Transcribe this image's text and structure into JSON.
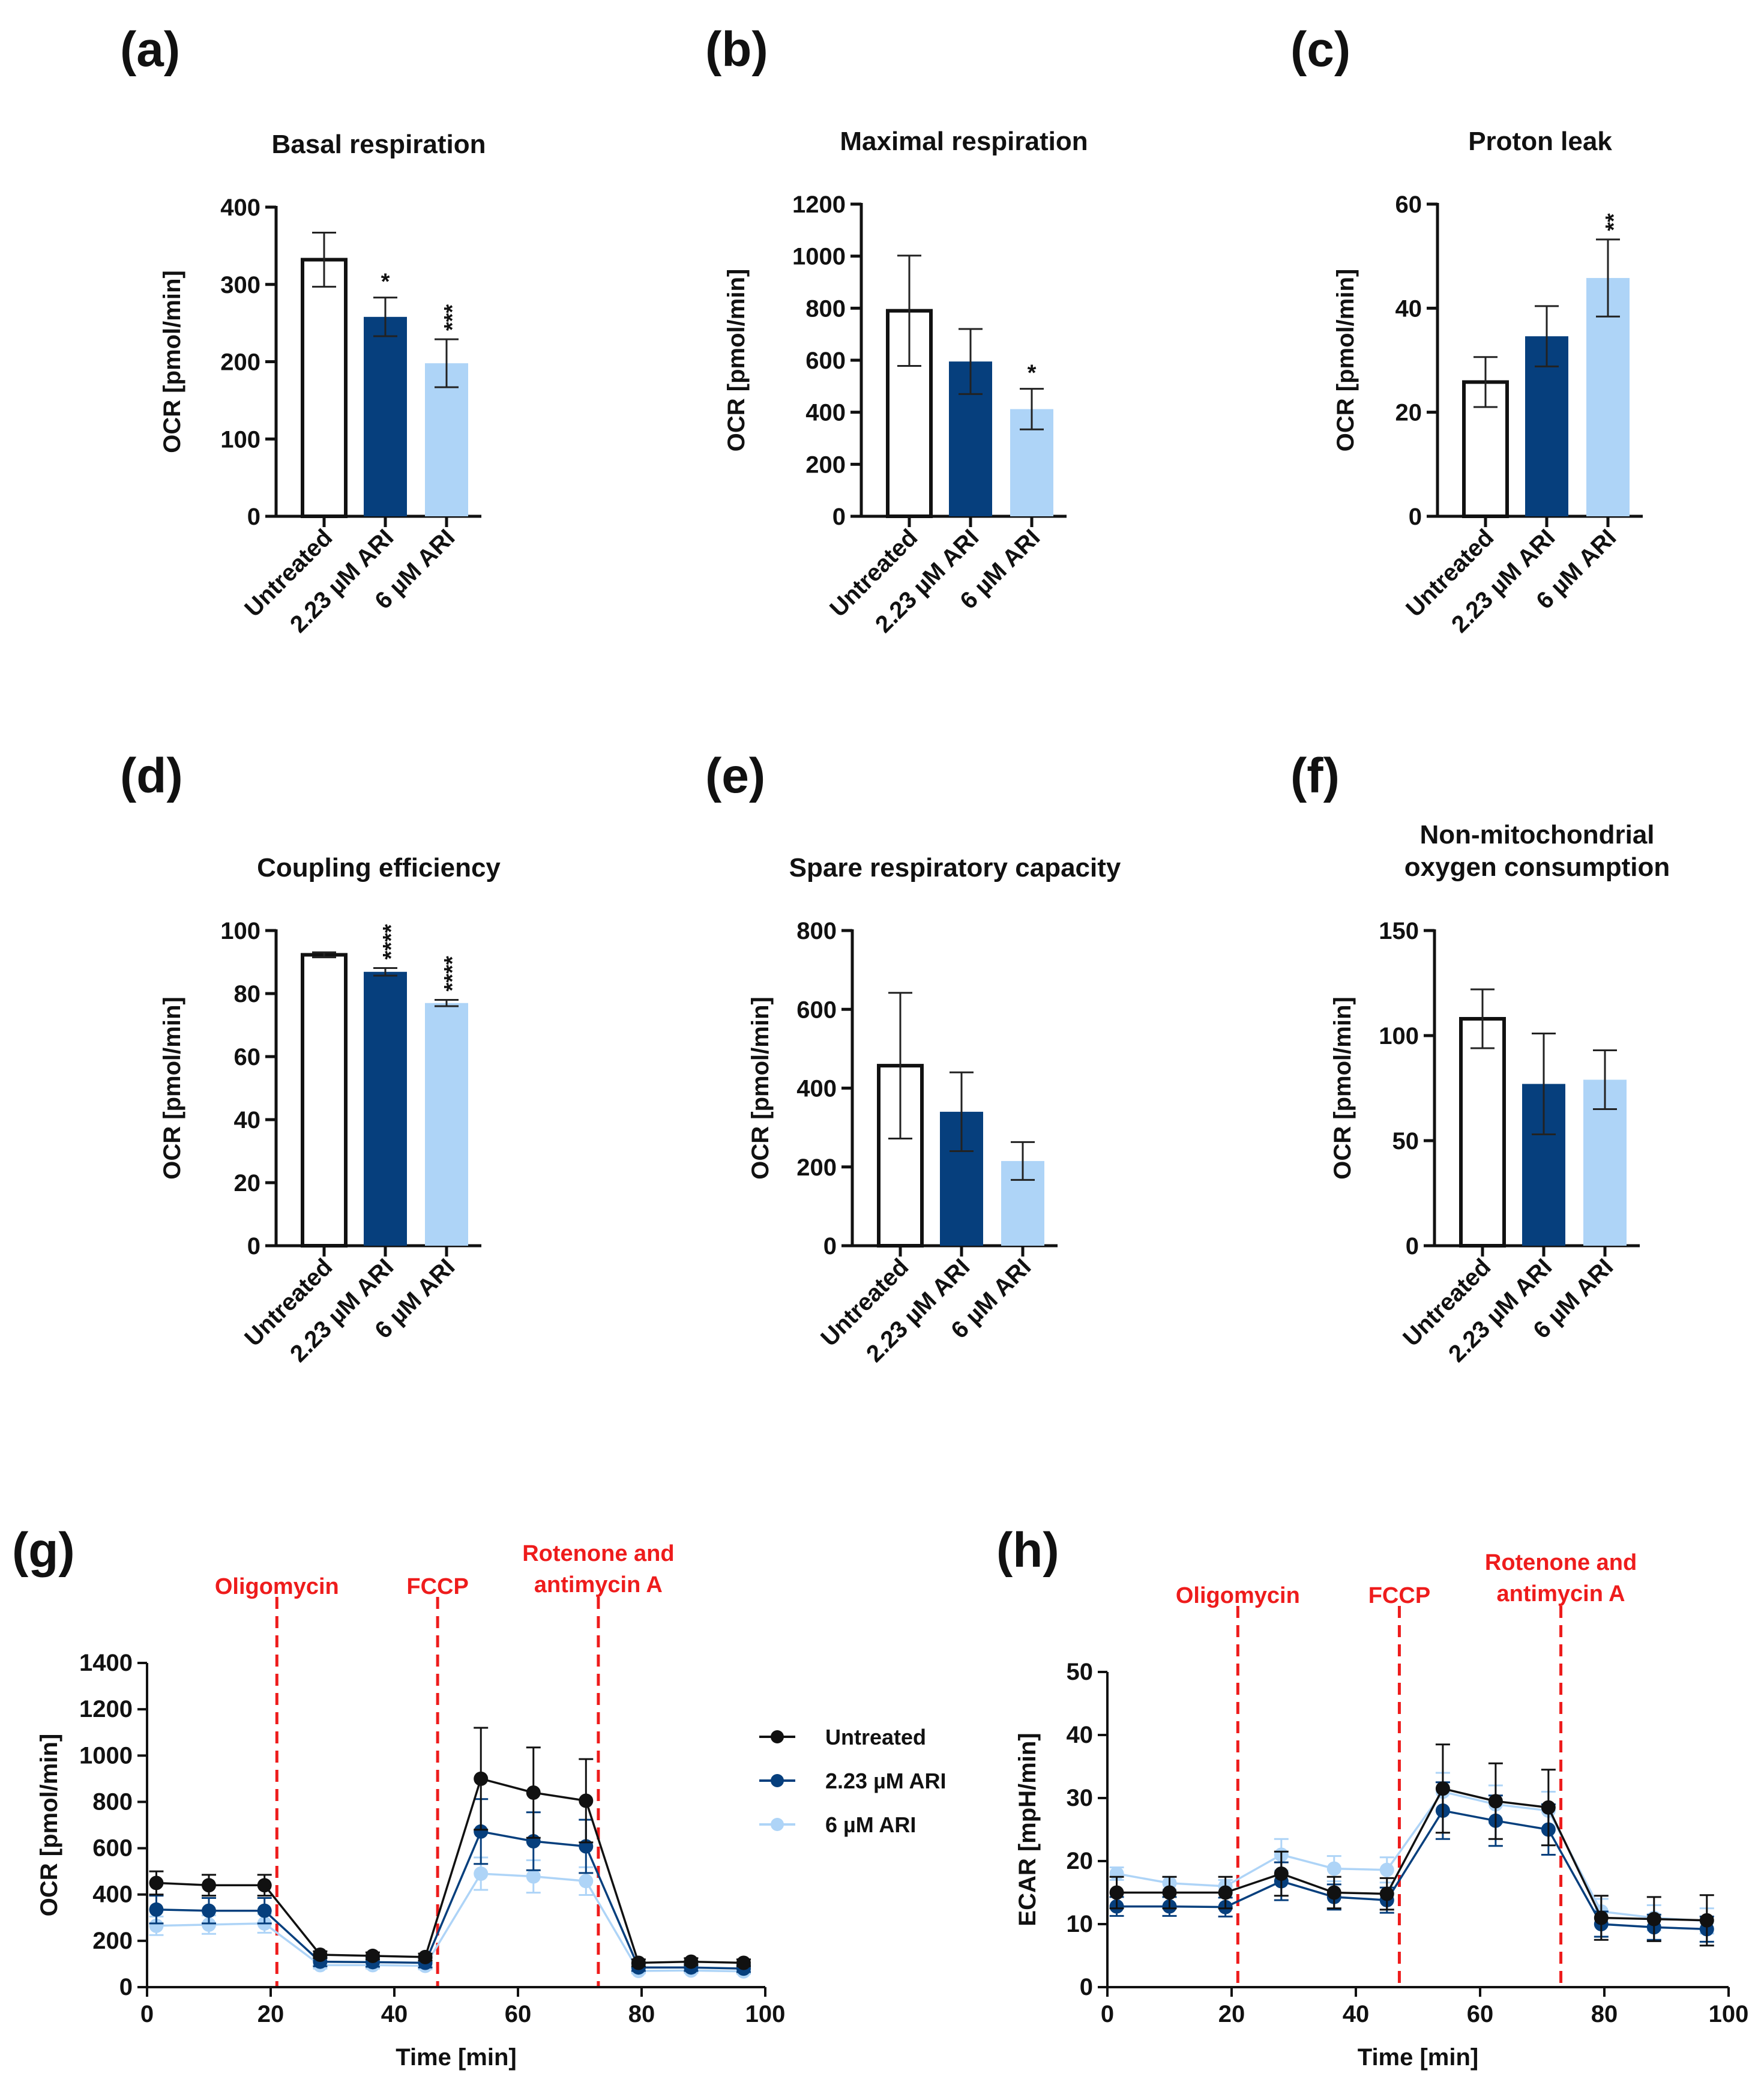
{
  "figure": {
    "series_colors": {
      "Untreated": "#111111",
      "2.23 µM ARI": "#063f7d",
      "6 µM ARI": "#aed4f7",
      "treatment_line": "#ee1c1c"
    },
    "legend": [
      "Untreated",
      "2.23 µM ARI",
      "6 µM ARI"
    ]
  },
  "chart_data": [
    {
      "id": "a",
      "letter": "(a)",
      "type": "bar",
      "title": [
        "Basal respiration"
      ],
      "ylabel": "OCR [pmol/min]",
      "ylim": [
        0,
        400
      ],
      "yticks": [
        0,
        100,
        200,
        300,
        400
      ],
      "categories": [
        "Untreated",
        "2.23 µM ARI",
        "6 µM ARI"
      ],
      "values": [
        332,
        258,
        198
      ],
      "errors": [
        35,
        25,
        31
      ],
      "significance": [
        "",
        "*",
        "***"
      ]
    },
    {
      "id": "b",
      "letter": "(b)",
      "type": "bar",
      "title": [
        "Maximal respiration"
      ],
      "ylabel": "OCR [pmol/min]",
      "ylim": [
        0,
        1200
      ],
      "yticks": [
        0,
        200,
        400,
        600,
        800,
        1000,
        1200
      ],
      "categories": [
        "Untreated",
        "2.23 µM ARI",
        "6 µM ARI"
      ],
      "values": [
        790,
        595,
        412
      ],
      "errors": [
        212,
        125,
        78
      ],
      "significance": [
        "",
        "",
        "*"
      ]
    },
    {
      "id": "c",
      "letter": "(c)",
      "type": "bar",
      "title": [
        "Proton leak"
      ],
      "ylabel": "OCR [pmol/min]",
      "ylim": [
        0,
        60
      ],
      "yticks": [
        0,
        20,
        40,
        60
      ],
      "categories": [
        "Untreated",
        "2.23 µM ARI",
        "6 µM ARI"
      ],
      "values": [
        25.8,
        34.6,
        45.8
      ],
      "errors": [
        4.8,
        5.8,
        7.4
      ],
      "significance": [
        "",
        "",
        "**"
      ]
    },
    {
      "id": "d",
      "letter": "(d)",
      "type": "bar",
      "title": [
        "Coupling efficiency"
      ],
      "ylabel": "OCR [pmol/min]",
      "ylim": [
        0,
        100
      ],
      "yticks": [
        0,
        20,
        40,
        60,
        80,
        100
      ],
      "categories": [
        "Untreated",
        "2.23 µM ARI",
        "6 µM ARI"
      ],
      "values": [
        92.3,
        86.9,
        77.0
      ],
      "errors": [
        0.8,
        1.2,
        1.0
      ],
      "significance": [
        "",
        "****",
        "****"
      ]
    },
    {
      "id": "e",
      "letter": "(e)",
      "type": "bar",
      "title": [
        "Spare respiratory capacity"
      ],
      "ylabel": "OCR [pmol/min]",
      "ylim": [
        0,
        800
      ],
      "yticks": [
        0,
        200,
        400,
        600,
        800
      ],
      "categories": [
        "Untreated",
        "2.23 µM ARI",
        "6 µM ARI"
      ],
      "values": [
        457,
        340,
        215
      ],
      "errors": [
        185,
        100,
        48
      ],
      "significance": [
        "",
        "",
        ""
      ]
    },
    {
      "id": "f",
      "letter": "(f)",
      "type": "bar",
      "title": [
        "Non-mitochondrial",
        "oxygen consumption"
      ],
      "ylabel": "OCR [pmol/min]",
      "ylim": [
        0,
        150
      ],
      "yticks": [
        0,
        50,
        100,
        150
      ],
      "categories": [
        "Untreated",
        "2.23 µM ARI",
        "6 µM ARI"
      ],
      "values": [
        108,
        77,
        79
      ],
      "errors": [
        14,
        24,
        14
      ],
      "significance": [
        "",
        "",
        ""
      ]
    },
    {
      "id": "g",
      "letter": "(g)",
      "type": "line",
      "ylabel": "OCR [pmol/min]",
      "xlabel": "Time [min]",
      "xlim": [
        0,
        100
      ],
      "xticks": [
        0,
        20,
        40,
        60,
        80,
        100
      ],
      "ylim": [
        0,
        1400
      ],
      "yticks": [
        0,
        200,
        400,
        600,
        800,
        1000,
        1200,
        1400
      ],
      "x": [
        1.5,
        10,
        19,
        28,
        36.5,
        45,
        54,
        62.5,
        71,
        79.5,
        88,
        96.5
      ],
      "series": [
        {
          "name": "Untreated",
          "values": [
            450,
            440,
            440,
            140,
            135,
            130,
            900,
            840,
            805,
            105,
            110,
            105
          ],
          "errors": [
            50,
            45,
            45,
            15,
            15,
            15,
            220,
            195,
            180,
            15,
            15,
            15
          ]
        },
        {
          "name": "2.23 µM ARI",
          "values": [
            335,
            330,
            330,
            110,
            108,
            105,
            672,
            630,
            608,
            85,
            85,
            80
          ],
          "errors": [
            60,
            55,
            55,
            20,
            20,
            20,
            140,
            125,
            115,
            15,
            15,
            15
          ]
        },
        {
          "name": "6 µM ARI",
          "values": [
            265,
            270,
            275,
            95,
            95,
            92,
            490,
            478,
            458,
            70,
            72,
            68
          ],
          "errors": [
            40,
            40,
            40,
            15,
            15,
            15,
            70,
            70,
            60,
            10,
            10,
            10
          ]
        }
      ],
      "treatments": [
        {
          "x": 21,
          "label": [
            "Oligomycin"
          ]
        },
        {
          "x": 47,
          "label": [
            "FCCP"
          ]
        },
        {
          "x": 73,
          "label": [
            "Rotenone and",
            "antimycin A"
          ]
        }
      ]
    },
    {
      "id": "h",
      "letter": "(h)",
      "type": "line",
      "ylabel": "ECAR [mpH/min]",
      "xlabel": "Time [min]",
      "xlim": [
        0,
        100
      ],
      "xticks": [
        0,
        20,
        40,
        60,
        80,
        100
      ],
      "ylim": [
        0,
        50
      ],
      "yticks": [
        0,
        10,
        20,
        30,
        40,
        50
      ],
      "x": [
        1.5,
        10,
        19,
        28,
        36.5,
        45,
        54,
        62.5,
        71,
        79.5,
        88,
        96.5
      ],
      "series": [
        {
          "name": "Untreated",
          "values": [
            15,
            15,
            15,
            18,
            15,
            14.8,
            31.5,
            29.5,
            28.5,
            11,
            10.8,
            10.6
          ],
          "errors": [
            2.5,
            2.5,
            2.5,
            3.5,
            2.5,
            2.5,
            7,
            6,
            6,
            3.5,
            3.5,
            4
          ]
        },
        {
          "name": "2.23 µM ARI",
          "values": [
            12.8,
            12.8,
            12.7,
            16.8,
            14.3,
            13.8,
            28,
            26.4,
            25,
            10,
            9.5,
            9.2
          ],
          "errors": [
            1.5,
            1.5,
            1.5,
            3,
            2,
            2,
            4.5,
            4,
            4,
            2,
            2,
            2
          ]
        },
        {
          "name": "6 µM ARI",
          "values": [
            18,
            16.5,
            16,
            21,
            18.8,
            18.6,
            31,
            29,
            28,
            12,
            11,
            10.5
          ],
          "errors": [
            1,
            1,
            1,
            2.5,
            2,
            2,
            3,
            3,
            3,
            2,
            2,
            2
          ]
        }
      ],
      "treatments": [
        {
          "x": 21,
          "label": [
            "Oligomycin"
          ]
        },
        {
          "x": 47,
          "label": [
            "FCCP"
          ]
        },
        {
          "x": 73,
          "label": [
            "Rotenone and",
            "antimycin A"
          ]
        }
      ]
    }
  ]
}
